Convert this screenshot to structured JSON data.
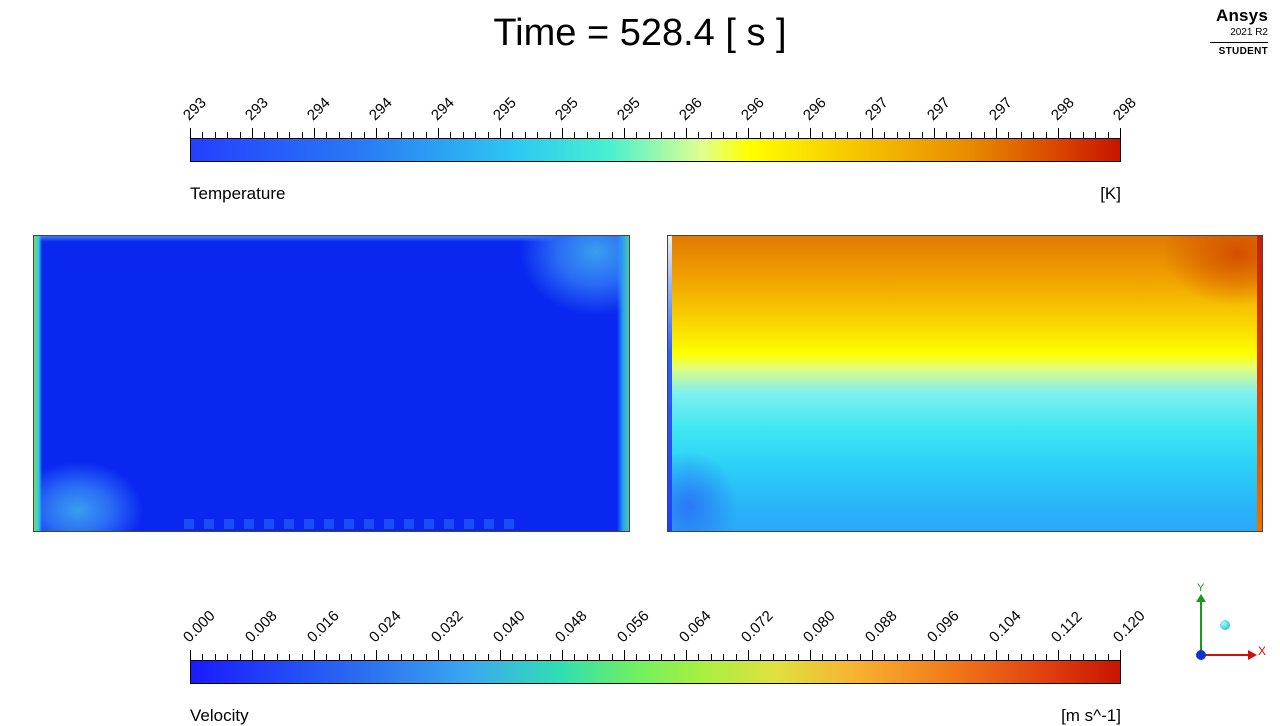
{
  "title": "Time = 528.4 [ s ]",
  "logo": {
    "brand": "Ansys",
    "version": "2021 R2",
    "edition": "STUDENT"
  },
  "temperature_legend": {
    "name": "Temperature",
    "unit": "[K]",
    "tick_labels": [
      "293",
      "293",
      "294",
      "294",
      "294",
      "295",
      "295",
      "295",
      "296",
      "296",
      "296",
      "297",
      "297",
      "297",
      "298",
      "298"
    ]
  },
  "velocity_legend": {
    "name": "Velocity",
    "unit": "[m s^-1]",
    "tick_labels": [
      "0.000",
      "0.008",
      "0.016",
      "0.024",
      "0.032",
      "0.040",
      "0.048",
      "0.056",
      "0.064",
      "0.072",
      "0.080",
      "0.088",
      "0.096",
      "0.104",
      "0.112",
      "0.120"
    ]
  },
  "triad": {
    "y_label": "Y",
    "x_label": "X"
  }
}
